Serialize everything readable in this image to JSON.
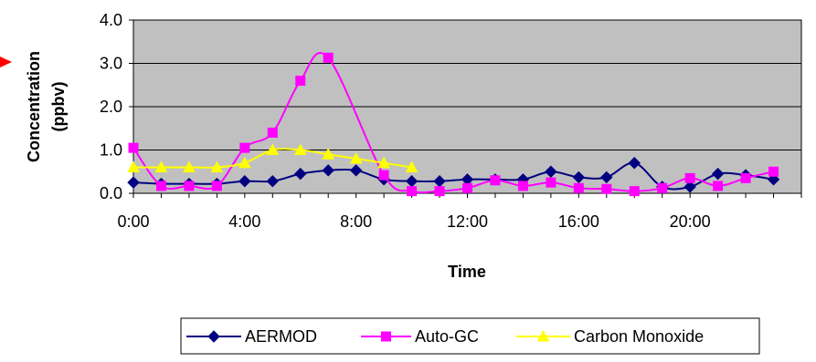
{
  "chart_data": {
    "type": "line",
    "title": "",
    "xlabel": "Time",
    "ylabel_line1": "Concentration",
    "ylabel_line2": "(ppbv)",
    "ylim": [
      0,
      4
    ],
    "yticks": [
      "0.0",
      "1.0",
      "2.0",
      "3.0",
      "4.0"
    ],
    "xlim": [
      0,
      24
    ],
    "xticks": [
      "0:00",
      "4:00",
      "8:00",
      "12:00",
      "16:00",
      "20:00"
    ],
    "grid": "horizontal",
    "plot_background": "#c0c0c0",
    "legend_position": "bottom-right",
    "series": [
      {
        "name": "AERMOD",
        "color": "#000080",
        "marker": "diamond",
        "x": [
          0,
          1,
          2,
          3,
          4,
          5,
          6,
          7,
          8,
          9,
          10,
          11,
          12,
          13,
          14,
          15,
          16,
          17,
          18,
          19,
          20,
          21,
          22,
          23
        ],
        "values": [
          0.25,
          0.22,
          0.22,
          0.22,
          0.28,
          0.28,
          0.45,
          0.53,
          0.53,
          0.32,
          0.28,
          0.28,
          0.32,
          0.32,
          0.32,
          0.5,
          0.37,
          0.37,
          0.7,
          0.15,
          0.15,
          0.45,
          0.42,
          0.32
        ]
      },
      {
        "name": "Auto-GC",
        "color": "#ff00ff",
        "marker": "square",
        "x": [
          0,
          1,
          2,
          3,
          4,
          5,
          6,
          7,
          9,
          10,
          11,
          12,
          13,
          14,
          15,
          16,
          17,
          18,
          19,
          20,
          21,
          22,
          23
        ],
        "values": [
          1.05,
          0.17,
          0.17,
          0.17,
          1.05,
          1.4,
          2.6,
          3.13,
          0.42,
          0.05,
          0.05,
          0.12,
          0.3,
          0.17,
          0.25,
          0.12,
          0.1,
          0.05,
          0.12,
          0.35,
          0.17,
          0.35,
          0.5
        ]
      },
      {
        "name": "Carbon Monoxide",
        "color": "#ffff00",
        "marker": "triangle",
        "x": [
          0,
          1,
          2,
          3,
          4,
          5,
          6,
          7,
          8,
          9,
          10
        ],
        "values": [
          0.6,
          0.6,
          0.6,
          0.6,
          0.7,
          1.0,
          1.0,
          0.9,
          0.8,
          0.7,
          0.6
        ]
      }
    ]
  }
}
